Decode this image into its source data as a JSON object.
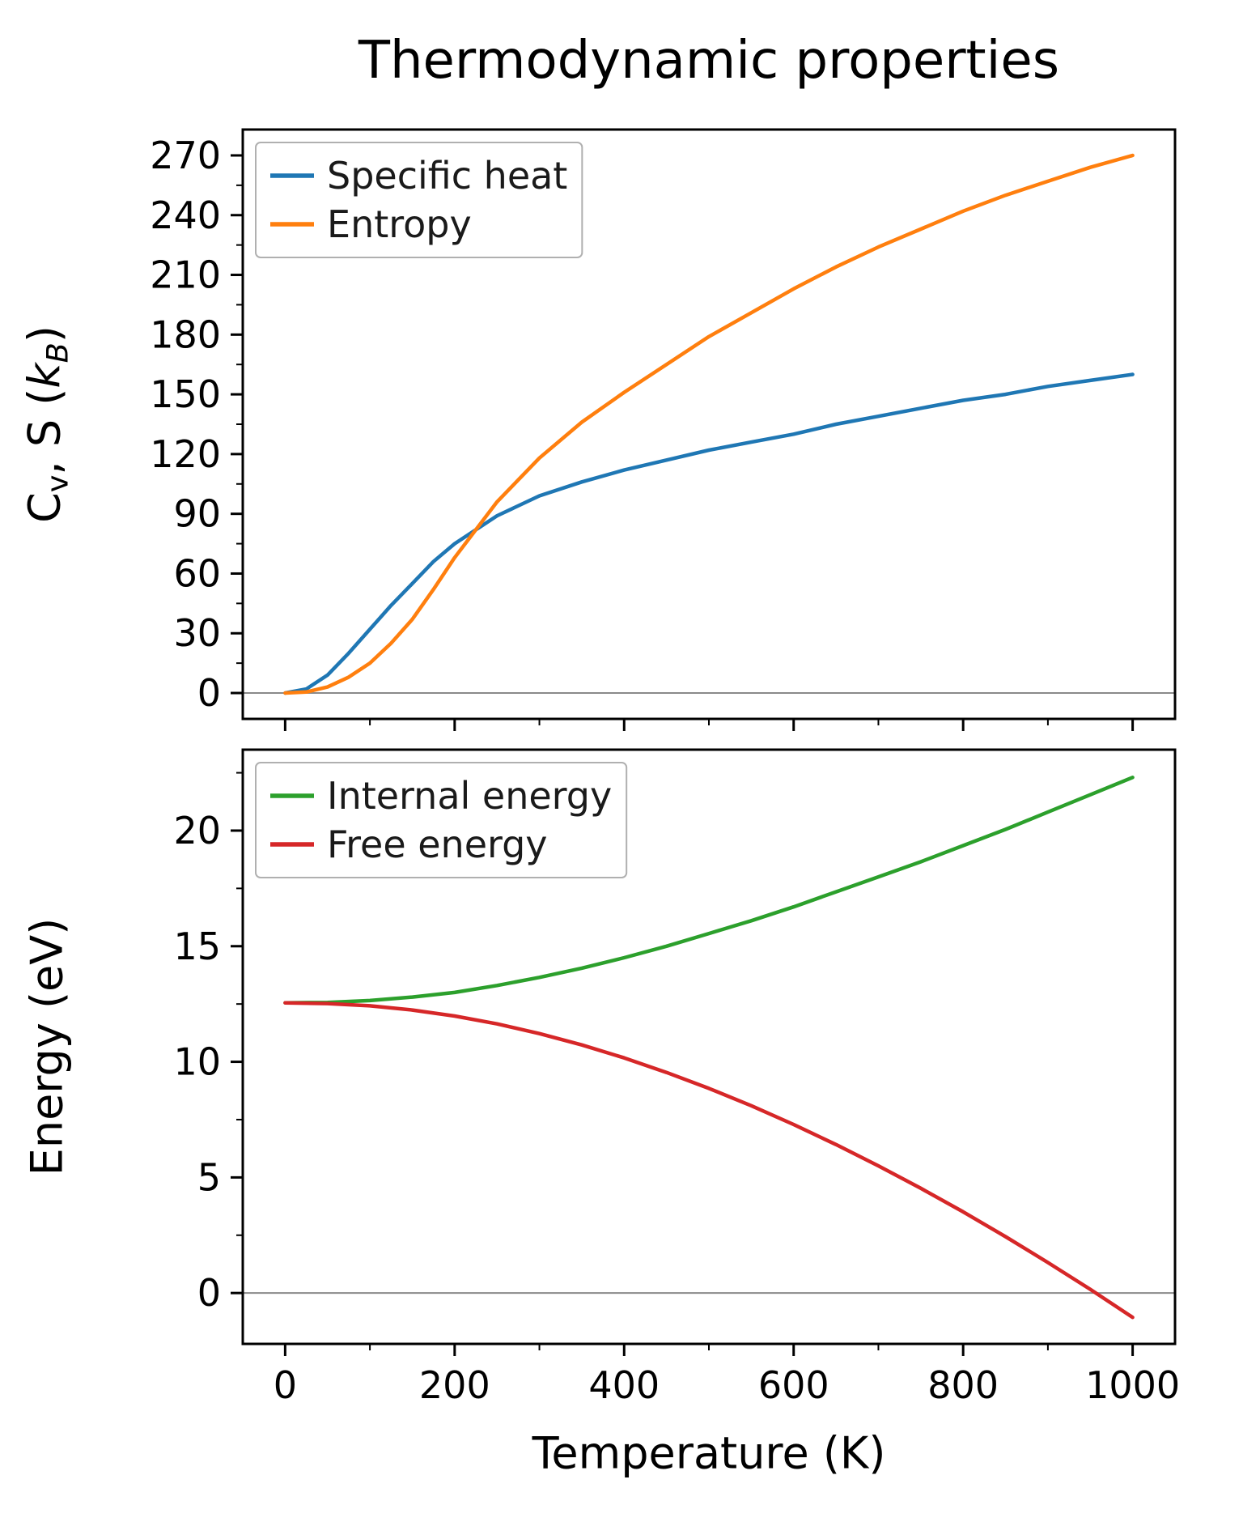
{
  "figure": {
    "title": "Thermodynamic properties",
    "xlabel": "Temperature (K)",
    "background": "#ffffff"
  },
  "chart_data": [
    {
      "type": "line",
      "title": "",
      "ylabel_plain": "Cv, S (kB)",
      "ylabel_segments": [
        {
          "text": "C"
        },
        {
          "text": "v",
          "sub": true
        },
        {
          "text": ", S ("
        },
        {
          "text": "k",
          "italic": true
        },
        {
          "text": "B",
          "sub": true,
          "italic": true
        },
        {
          "text": ")"
        }
      ],
      "xlim": [
        -50,
        1050
      ],
      "ylim": [
        -13,
        283
      ],
      "xticks": [
        0,
        200,
        400,
        600,
        800,
        1000
      ],
      "yticks": [
        0,
        30,
        60,
        90,
        120,
        150,
        180,
        210,
        240,
        270
      ],
      "show_x_tick_labels": false,
      "grid": false,
      "zero_line": true,
      "zero_line_color": "#8a8a8a",
      "legend_position": "upper-left",
      "series": [
        {
          "name": "Specific heat",
          "color": "#1f77b4",
          "x": [
            0,
            25,
            50,
            75,
            100,
            125,
            150,
            175,
            200,
            250,
            300,
            350,
            400,
            450,
            500,
            550,
            600,
            650,
            700,
            750,
            800,
            850,
            900,
            950,
            1000
          ],
          "y": [
            0,
            2,
            9,
            20,
            32,
            44,
            55,
            66,
            75,
            89,
            99,
            106,
            112,
            117,
            122,
            126,
            130,
            135,
            139,
            143,
            147,
            150,
            154,
            157,
            160
          ]
        },
        {
          "name": "Entropy",
          "color": "#ff7f0e",
          "x": [
            0,
            25,
            50,
            75,
            100,
            125,
            150,
            175,
            200,
            250,
            300,
            350,
            400,
            450,
            500,
            550,
            600,
            650,
            700,
            750,
            800,
            850,
            900,
            950,
            1000
          ],
          "y": [
            0,
            0.5,
            3,
            8,
            15,
            25,
            37,
            52,
            68,
            96,
            118,
            136,
            151,
            165,
            179,
            191,
            203,
            214,
            224,
            233,
            242,
            250,
            257,
            264,
            270
          ]
        }
      ]
    },
    {
      "type": "line",
      "title": "",
      "ylabel_plain": "Energy (eV)",
      "ylabel_segments": [
        {
          "text": "Energy (eV)"
        }
      ],
      "xlim": [
        -50,
        1050
      ],
      "ylim": [
        -2.2,
        23.5
      ],
      "xticks": [
        0,
        200,
        400,
        600,
        800,
        1000
      ],
      "yticks": [
        0,
        5,
        10,
        15,
        20
      ],
      "show_x_tick_labels": true,
      "grid": false,
      "zero_line": true,
      "zero_line_color": "#8a8a8a",
      "legend_position": "upper-left",
      "series": [
        {
          "name": "Internal energy",
          "color": "#2ca02c",
          "x": [
            0,
            50,
            100,
            150,
            200,
            250,
            300,
            350,
            400,
            450,
            500,
            550,
            600,
            650,
            700,
            750,
            800,
            850,
            900,
            950,
            1000
          ],
          "y": [
            12.55,
            12.57,
            12.65,
            12.8,
            13.0,
            13.3,
            13.65,
            14.05,
            14.5,
            15.0,
            15.55,
            16.1,
            16.7,
            17.35,
            18.0,
            18.65,
            19.35,
            20.05,
            20.8,
            21.55,
            22.3
          ]
        },
        {
          "name": "Free energy",
          "color": "#d62728",
          "x": [
            0,
            50,
            100,
            150,
            200,
            250,
            300,
            350,
            400,
            450,
            500,
            550,
            600,
            650,
            700,
            750,
            800,
            850,
            900,
            950,
            1000
          ],
          "y": [
            12.55,
            12.52,
            12.42,
            12.24,
            11.98,
            11.64,
            11.22,
            10.73,
            10.17,
            9.54,
            8.85,
            8.1,
            7.29,
            6.42,
            5.5,
            4.53,
            3.51,
            2.44,
            1.32,
            0.16,
            -1.05
          ]
        }
      ]
    }
  ]
}
